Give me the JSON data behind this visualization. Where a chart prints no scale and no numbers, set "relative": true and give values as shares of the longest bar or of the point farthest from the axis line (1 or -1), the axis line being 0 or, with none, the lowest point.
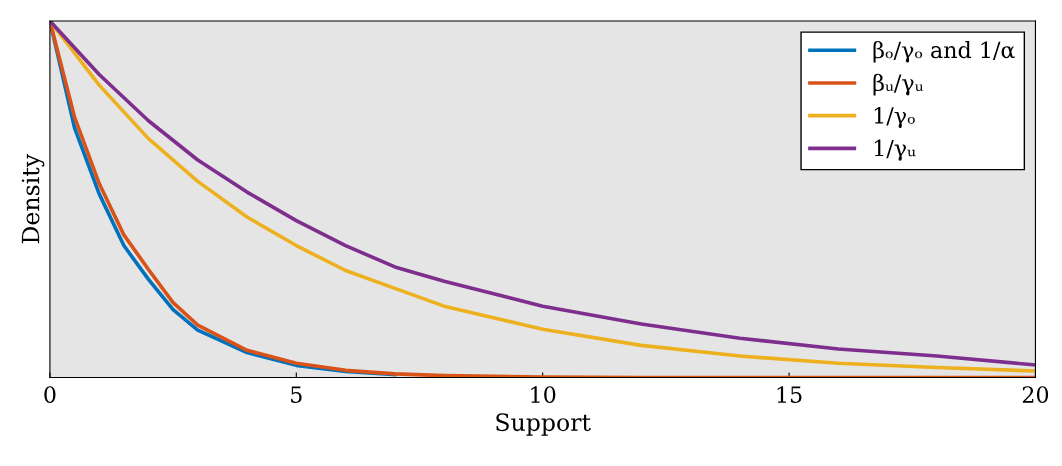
{
  "chart_data": {
    "type": "line",
    "relative": true,
    "xlabel": "Support",
    "ylabel": "Density",
    "xlim": [
      0,
      20
    ],
    "xticks": [
      0,
      5,
      10,
      15,
      20
    ],
    "grid": false,
    "legend": "top right",
    "marker": "none",
    "line_style": "solid",
    "series": [
      {
        "name": "βₒ/γₒ and 1/α",
        "color": "#0072bd",
        "x": [
          0,
          0.5,
          1,
          1.5,
          2,
          2.5,
          3,
          4,
          5,
          6,
          7
        ],
        "values": [
          1,
          0.7,
          0.515,
          0.37,
          0.275,
          0.19,
          0.133,
          0.07,
          0.034,
          0.017,
          0.008
        ]
      },
      {
        "name": "βᵤ/γᵤ",
        "color": "#d95319",
        "x": [
          0,
          0.5,
          1,
          1.5,
          2,
          2.5,
          3,
          4,
          5,
          6,
          7,
          8,
          10,
          12,
          14,
          16,
          18,
          20
        ],
        "values": [
          1,
          0.73,
          0.544,
          0.4,
          0.303,
          0.21,
          0.147,
          0.076,
          0.04,
          0.02,
          0.01,
          0.005,
          0.001,
          0,
          0,
          0,
          0,
          0
        ]
      },
      {
        "name": "1/γₒ",
        "color": "#edb120",
        "x": [
          0,
          1,
          2,
          3,
          4,
          5,
          6,
          7,
          8,
          10,
          12,
          14,
          16,
          18,
          20
        ],
        "values": [
          1,
          0.82,
          0.67,
          0.55,
          0.45,
          0.37,
          0.3,
          0.25,
          0.2,
          0.135,
          0.09,
          0.06,
          0.04,
          0.028,
          0.018
        ]
      },
      {
        "name": "1/γᵤ",
        "color": "#7e2f8e",
        "x": [
          0,
          1,
          2,
          3,
          4,
          5,
          6,
          7,
          8,
          10,
          12,
          14,
          16,
          18,
          20
        ],
        "values": [
          1,
          0.85,
          0.72,
          0.61,
          0.52,
          0.44,
          0.37,
          0.31,
          0.27,
          0.2,
          0.15,
          0.11,
          0.08,
          0.06,
          0.035
        ]
      }
    ]
  }
}
